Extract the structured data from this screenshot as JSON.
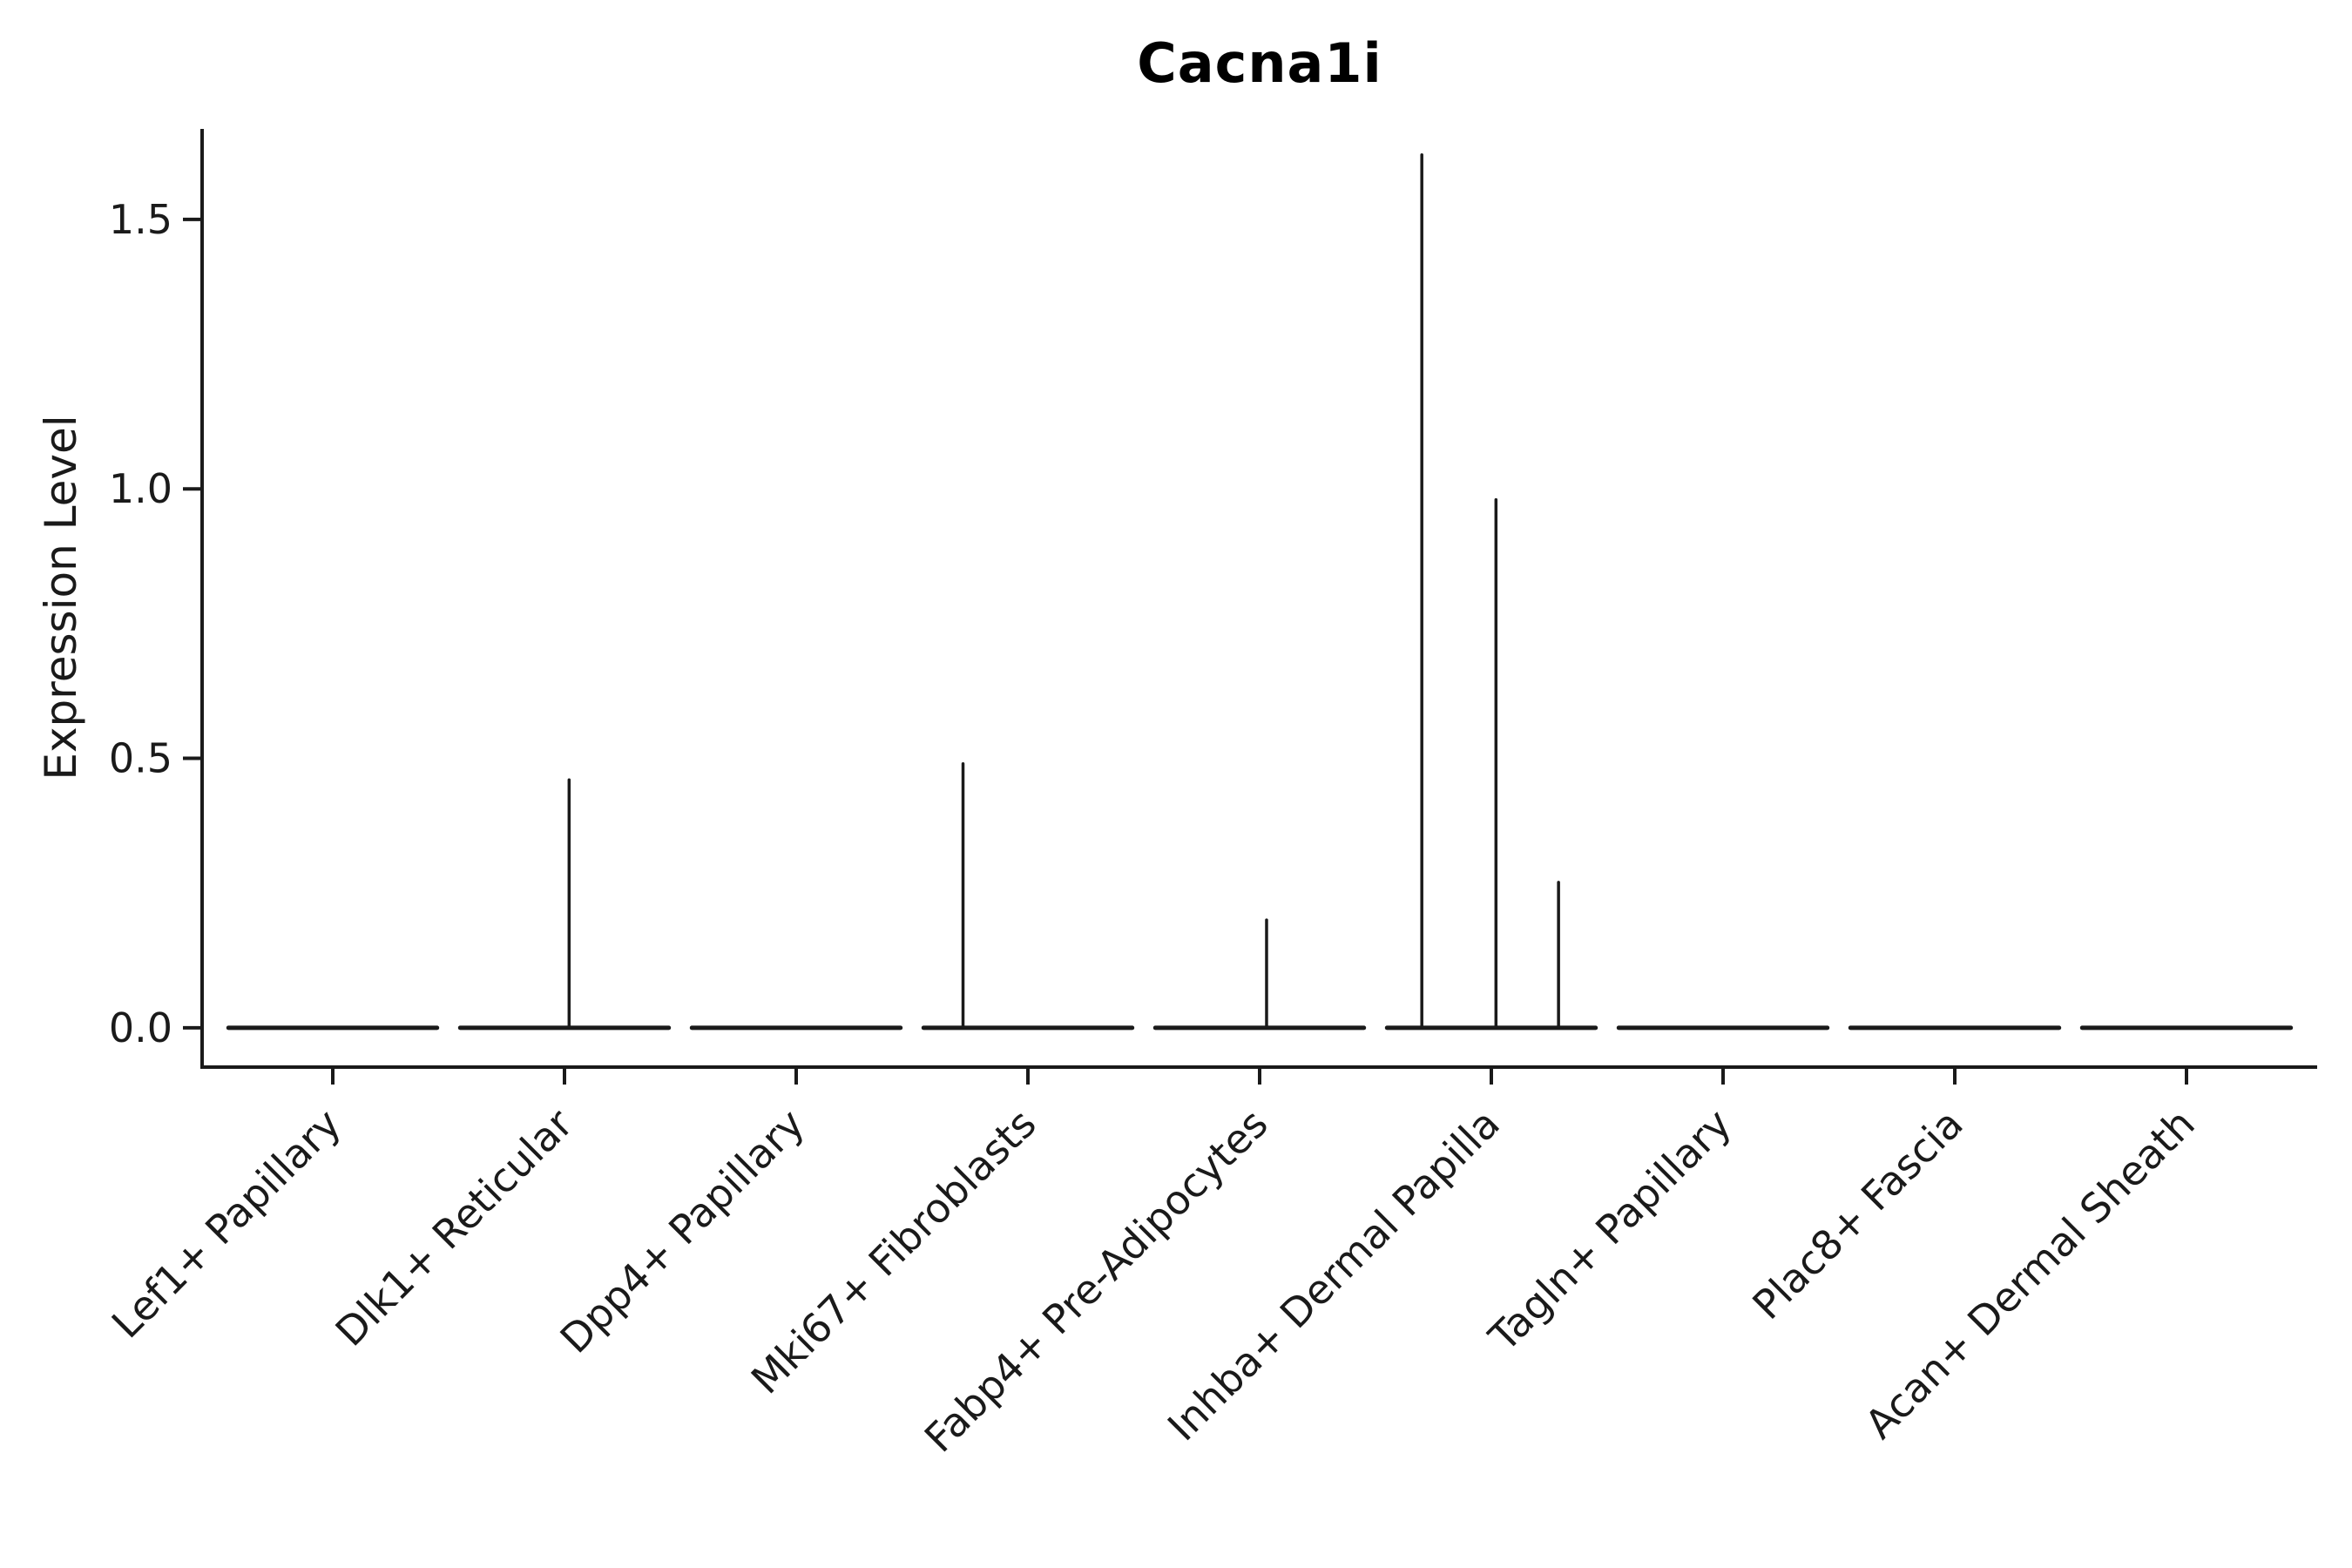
{
  "figure": {
    "title": "Cacna1i",
    "background": "#ffffff"
  },
  "chart_data": {
    "type": "violin",
    "title": "Cacna1i",
    "xlabel": "",
    "ylabel": "Expression Level",
    "ylim": [
      -0.073,
      1.668
    ],
    "yticks": [
      0,
      0.5,
      1.0,
      1.5
    ],
    "ytick_labels": [
      "0.0",
      "0.5",
      "1.0",
      "1.5"
    ],
    "grid": false,
    "legend": "none",
    "line_color": "#1a1a1a",
    "violin_width": 0.9,
    "x_label_rotation_deg": -45,
    "categories": [
      "Lef1+ Papillary",
      "Dlk1+ Reticular",
      "Dpp4+ Papillary",
      "Mki67+ Fibroblasts",
      "Fabp4+ Pre-Adipocytes",
      "Inhba+ Dermal Papilla",
      "Tagln+ Papillary",
      "Plac8+ Fascia",
      "Acan+ Dermal Sheath"
    ],
    "violins": [
      {
        "category": "Lef1+ Papillary",
        "base": 0.0,
        "max": 0.0,
        "spikes": []
      },
      {
        "category": "Dlk1+ Reticular",
        "base": 0.0,
        "max": 0.46,
        "spikes": [
          {
            "x_offset": 0.02,
            "value": 0.46
          }
        ]
      },
      {
        "category": "Dpp4+ Papillary",
        "base": 0.0,
        "max": 0.0,
        "spikes": []
      },
      {
        "category": "Mki67+ Fibroblasts",
        "base": 0.0,
        "max": 0.49,
        "spikes": [
          {
            "x_offset": -0.28,
            "value": 0.49
          }
        ]
      },
      {
        "category": "Fabp4+ Pre-Adipocytes",
        "base": 0.0,
        "max": 0.2,
        "spikes": [
          {
            "x_offset": 0.03,
            "value": 0.2
          }
        ]
      },
      {
        "category": "Inhba+ Dermal Papilla",
        "base": 0.0,
        "max": 1.62,
        "spikes": [
          {
            "x_offset": -0.3,
            "value": 1.62
          },
          {
            "x_offset": 0.02,
            "value": 0.98
          },
          {
            "x_offset": 0.29,
            "value": 0.27
          }
        ]
      },
      {
        "category": "Tagln+ Papillary",
        "base": 0.0,
        "max": 0.0,
        "spikes": []
      },
      {
        "category": "Plac8+ Fascia",
        "base": 0.0,
        "max": 0.0,
        "spikes": []
      },
      {
        "category": "Acan+ Dermal Sheath",
        "base": 0.0,
        "max": 0.0,
        "spikes": []
      }
    ]
  }
}
